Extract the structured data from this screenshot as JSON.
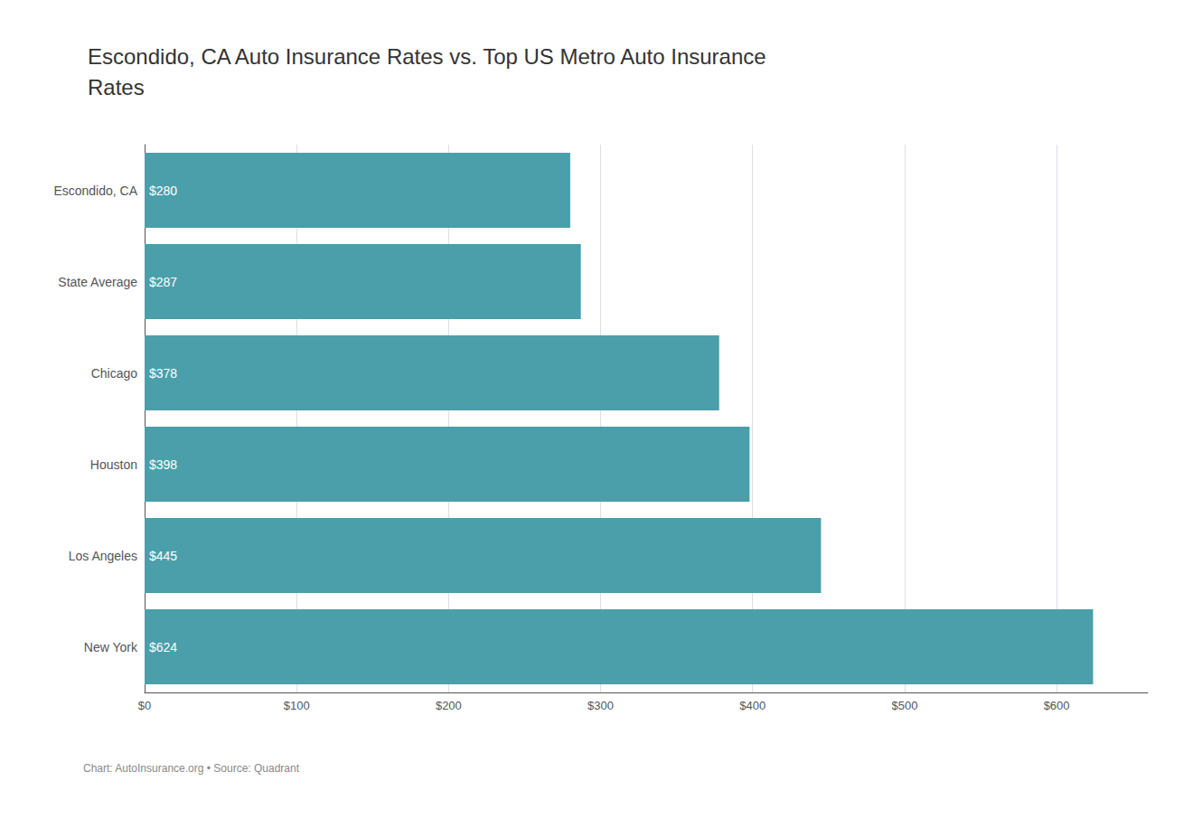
{
  "chart_data": {
    "type": "bar",
    "orientation": "horizontal",
    "title": "Escondido, CA Auto Insurance Rates vs. Top US Metro Auto Insurance\nRates",
    "caption": "Chart: AutoInsurance.org • Source: Quadrant",
    "categories": [
      "Escondido, CA",
      "State Average",
      "Chicago",
      "Houston",
      "Los Angeles",
      "New York"
    ],
    "values": [
      280,
      287,
      378,
      398,
      445,
      624
    ],
    "value_labels": [
      "$280",
      "$287",
      "$378",
      "$398",
      "$445",
      "$624"
    ],
    "data_labels": true,
    "color": "#4a9faa",
    "xlim": [
      0,
      660
    ],
    "xticks": [
      {
        "value": 0,
        "label": "$0"
      },
      {
        "value": 100,
        "label": "$100"
      },
      {
        "value": 200,
        "label": "$200"
      },
      {
        "value": 300,
        "label": "$300"
      },
      {
        "value": 400,
        "label": "$400"
      },
      {
        "value": 500,
        "label": "$500"
      },
      {
        "value": 600,
        "label": "$600"
      }
    ],
    "grid": true
  }
}
